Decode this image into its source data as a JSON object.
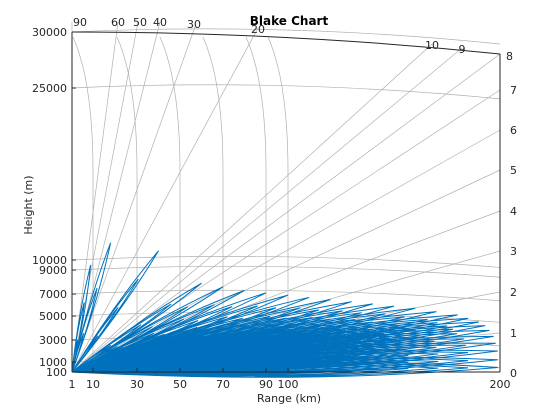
{
  "chart_data": {
    "type": "line",
    "title": "Blake Chart",
    "xlabel": "Range (km)",
    "ylabel": "Height (m)",
    "x_ticks": [
      "1",
      "10",
      "30",
      "50",
      "70",
      "90",
      "100",
      "200"
    ],
    "x_tick_values": [
      1,
      10,
      30,
      50,
      70,
      90,
      100,
      200
    ],
    "y_ticks": [
      "100",
      "1000",
      "3000",
      "5000",
      "7000",
      "9000",
      "10000",
      "25000",
      "30000"
    ],
    "y_tick_values": [
      100,
      1000,
      3000,
      5000,
      7000,
      9000,
      10000,
      25000,
      30000
    ],
    "elevation_angle_labels": [
      "90",
      "60",
      "50",
      "40",
      "30",
      "20",
      "10",
      "9",
      "8",
      "7",
      "6",
      "5",
      "4",
      "3",
      "2",
      "1",
      "0"
    ],
    "elevation_angle_values": [
      90,
      60,
      50,
      40,
      30,
      20,
      10,
      9,
      8,
      7,
      6,
      5,
      4,
      3,
      2,
      1,
      0
    ],
    "xlim": [
      1,
      200
    ],
    "ylim": [
      100,
      30000
    ],
    "grid": true,
    "series_color": "#0072BD",
    "lobes": [
      {
        "range_km": 9,
        "height_m": 9500
      },
      {
        "range_km": 18,
        "height_m": 11500
      },
      {
        "range_km": 40,
        "height_m": 10800
      },
      {
        "range_km": 60,
        "height_m": 7900
      },
      {
        "range_km": 70,
        "height_m": 7600
      },
      {
        "range_km": 80,
        "height_m": 7300
      },
      {
        "range_km": 90,
        "height_m": 7100
      },
      {
        "range_km": 100,
        "height_m": 6900
      },
      {
        "range_km": 110,
        "height_m": 6700
      },
      {
        "range_km": 120,
        "height_m": 6500
      },
      {
        "range_km": 130,
        "height_m": 6300
      },
      {
        "range_km": 140,
        "height_m": 6100
      },
      {
        "range_km": 150,
        "height_m": 5900
      },
      {
        "range_km": 160,
        "height_m": 5700
      },
      {
        "range_km": 170,
        "height_m": 5400
      },
      {
        "range_km": 180,
        "height_m": 5100
      },
      {
        "range_km": 185,
        "height_m": 4800
      },
      {
        "range_km": 190,
        "height_m": 4500
      },
      {
        "range_km": 193,
        "height_m": 4200
      },
      {
        "range_km": 195,
        "height_m": 3800
      },
      {
        "range_km": 197,
        "height_m": 3300
      },
      {
        "range_km": 198,
        "height_m": 2700
      },
      {
        "range_km": 199,
        "height_m": 2000
      },
      {
        "range_km": 199,
        "height_m": 1200
      },
      {
        "range_km": 199,
        "height_m": 500
      }
    ]
  }
}
